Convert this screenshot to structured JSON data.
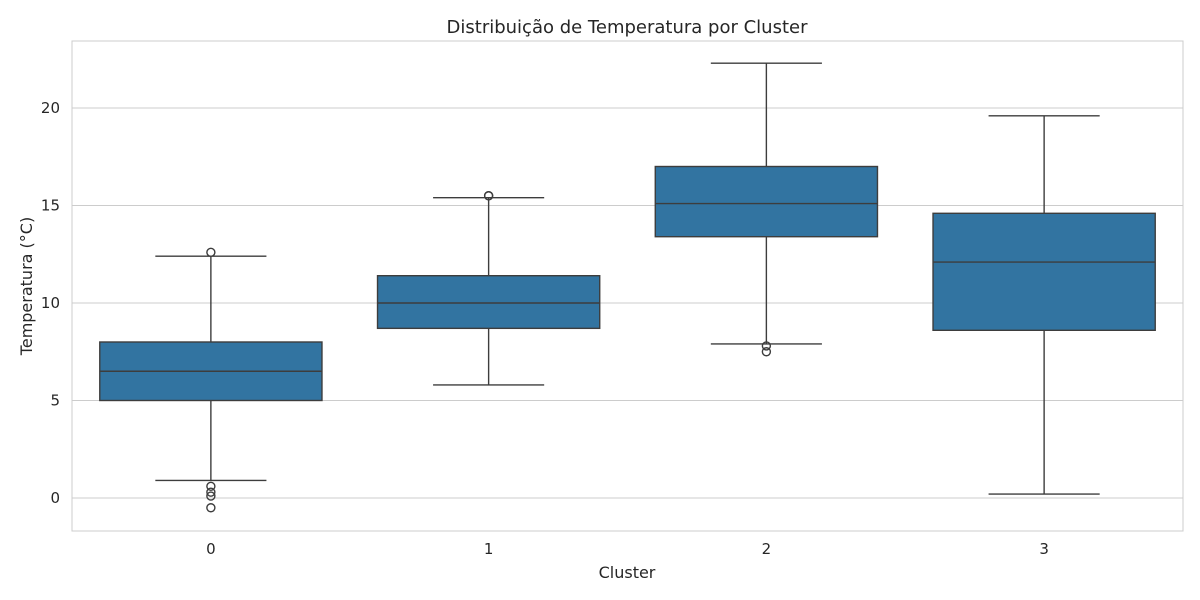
{
  "chart_data": {
    "type": "box",
    "title": "Distribuição de Temperatura por Cluster",
    "xlabel": "Cluster",
    "ylabel": "Temperatura (°C)",
    "categories": [
      "0",
      "1",
      "2",
      "3"
    ],
    "ylim": [
      -1.7,
      23.4
    ],
    "yticks": [
      0,
      5,
      10,
      15,
      20
    ],
    "grid": true,
    "color": "#3274a1",
    "boxes": [
      {
        "label": "0",
        "whisker_low": 0.9,
        "q1": 5.0,
        "median": 6.5,
        "q3": 8.0,
        "whisker_high": 12.4,
        "fliers": [
          12.6,
          0.6,
          0.3,
          0.1,
          -0.5
        ]
      },
      {
        "label": "1",
        "whisker_low": 5.8,
        "q1": 8.7,
        "median": 10.0,
        "q3": 11.4,
        "whisker_high": 15.4,
        "fliers": [
          15.5,
          15.5
        ]
      },
      {
        "label": "2",
        "whisker_low": 7.9,
        "q1": 13.4,
        "median": 15.1,
        "q3": 17.0,
        "whisker_high": 22.3,
        "fliers": [
          7.8,
          7.5
        ]
      },
      {
        "label": "3",
        "whisker_low": 0.2,
        "q1": 8.6,
        "median": 12.1,
        "q3": 14.6,
        "whisker_high": 19.6,
        "fliers": []
      }
    ]
  }
}
